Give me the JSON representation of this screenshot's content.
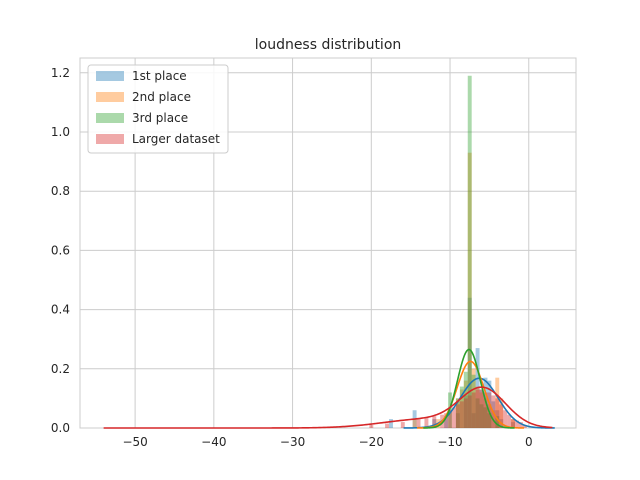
{
  "chart_data": {
    "type": "histogram+kde",
    "title": "loudness distribution",
    "xlabel": "",
    "ylabel": "",
    "xlim": [
      -57,
      6
    ],
    "ylim": [
      0,
      1.25
    ],
    "x_ticks": [
      -50,
      -40,
      -30,
      -20,
      -10,
      0
    ],
    "y_ticks": [
      0.0,
      0.2,
      0.4,
      0.6,
      0.8,
      1.0,
      1.2
    ],
    "x_tick_labels": [
      "−50",
      "−40",
      "−30",
      "−20",
      "−10",
      "0"
    ],
    "y_tick_labels": [
      "0.0",
      "0.2",
      "0.4",
      "0.6",
      "0.8",
      "1.0",
      "1.2"
    ],
    "grid": true,
    "legend_position": "top-left",
    "bin_width": 0.5,
    "series": [
      {
        "name": "1st place",
        "color": "#1f77b4",
        "bars": [
          {
            "x": -17.5,
            "h": 0.03
          },
          {
            "x": -14.5,
            "h": 0.06
          },
          {
            "x": -12.0,
            "h": 0.03
          },
          {
            "x": -10.5,
            "h": 0.04
          },
          {
            "x": -9.0,
            "h": 0.05
          },
          {
            "x": -8.0,
            "h": 0.11
          },
          {
            "x": -7.5,
            "h": 0.44
          },
          {
            "x": -7.0,
            "h": 0.05
          },
          {
            "x": -6.5,
            "h": 0.27
          },
          {
            "x": -6.0,
            "h": 0.13
          },
          {
            "x": -5.5,
            "h": 0.17
          },
          {
            "x": -5.0,
            "h": 0.16
          },
          {
            "x": -4.5,
            "h": 0.09
          },
          {
            "x": -4.0,
            "h": 0.06
          },
          {
            "x": -3.5,
            "h": 0.03
          },
          {
            "x": -2.0,
            "h": 0.02
          }
        ],
        "kde": {
          "mu": -6.3,
          "sigma": 2.4,
          "amp": 0.168
        }
      },
      {
        "name": "2nd place",
        "color": "#ff7f0e",
        "bars": [
          {
            "x": -14.5,
            "h": 0.03
          },
          {
            "x": -11.5,
            "h": 0.03
          },
          {
            "x": -9.0,
            "h": 0.1
          },
          {
            "x": -8.5,
            "h": 0.13
          },
          {
            "x": -8.0,
            "h": 0.16
          },
          {
            "x": -7.5,
            "h": 0.93
          },
          {
            "x": -7.0,
            "h": 0.2
          },
          {
            "x": -6.5,
            "h": 0.14
          },
          {
            "x": -6.0,
            "h": 0.12
          },
          {
            "x": -5.5,
            "h": 0.1
          },
          {
            "x": -5.0,
            "h": 0.08
          },
          {
            "x": -4.5,
            "h": 0.06
          },
          {
            "x": -4.0,
            "h": 0.17
          },
          {
            "x": -3.5,
            "h": 0.1
          },
          {
            "x": -2.0,
            "h": 0.03
          }
        ],
        "kde": {
          "mu": -7.4,
          "sigma": 1.7,
          "amp": 0.225
        }
      },
      {
        "name": "3rd place",
        "color": "#2ca02c",
        "bars": [
          {
            "x": -10.0,
            "h": 0.12
          },
          {
            "x": -9.0,
            "h": 0.1
          },
          {
            "x": -8.5,
            "h": 0.14
          },
          {
            "x": -8.0,
            "h": 0.19
          },
          {
            "x": -7.5,
            "h": 1.19
          },
          {
            "x": -7.0,
            "h": 0.18
          },
          {
            "x": -6.5,
            "h": 0.1
          },
          {
            "x": -6.0,
            "h": 0.08
          },
          {
            "x": -5.5,
            "h": 0.07
          },
          {
            "x": -5.0,
            "h": 0.05
          },
          {
            "x": -4.0,
            "h": 0.04
          }
        ],
        "kde": {
          "mu": -7.6,
          "sigma": 1.45,
          "amp": 0.265
        }
      },
      {
        "name": "Larger dataset",
        "color": "#d62728",
        "bars": [
          {
            "x": -20.0,
            "h": 0.01
          },
          {
            "x": -18.0,
            "h": 0.015
          },
          {
            "x": -16.0,
            "h": 0.02
          },
          {
            "x": -14.0,
            "h": 0.03
          },
          {
            "x": -13.0,
            "h": 0.035
          },
          {
            "x": -12.0,
            "h": 0.04
          },
          {
            "x": -11.0,
            "h": 0.045
          },
          {
            "x": -10.5,
            "h": 0.05
          },
          {
            "x": -10.0,
            "h": 0.06
          },
          {
            "x": -9.5,
            "h": 0.07
          },
          {
            "x": -9.0,
            "h": 0.08
          },
          {
            "x": -8.5,
            "h": 0.09
          },
          {
            "x": -8.0,
            "h": 0.1
          },
          {
            "x": -7.5,
            "h": 0.11
          },
          {
            "x": -7.0,
            "h": 0.12
          },
          {
            "x": -6.5,
            "h": 0.13
          },
          {
            "x": -6.0,
            "h": 0.13
          },
          {
            "x": -5.5,
            "h": 0.12
          },
          {
            "x": -5.0,
            "h": 0.12
          },
          {
            "x": -4.5,
            "h": 0.11
          },
          {
            "x": -4.0,
            "h": 0.1
          },
          {
            "x": -3.5,
            "h": 0.08
          },
          {
            "x": -3.0,
            "h": 0.06
          },
          {
            "x": -2.5,
            "h": 0.045
          },
          {
            "x": -2.0,
            "h": 0.03
          },
          {
            "x": -1.5,
            "h": 0.025
          },
          {
            "x": -1.0,
            "h": 0.02
          },
          {
            "x": -0.5,
            "h": 0.01
          }
        ],
        "kde": {
          "mu": -5.8,
          "sigma": 2.9,
          "amp": 0.125,
          "tail_amp": 0.03,
          "tail_mu": -13.0,
          "tail_sigma": 5.5,
          "x_range": [
            -54,
            3
          ]
        }
      }
    ]
  }
}
